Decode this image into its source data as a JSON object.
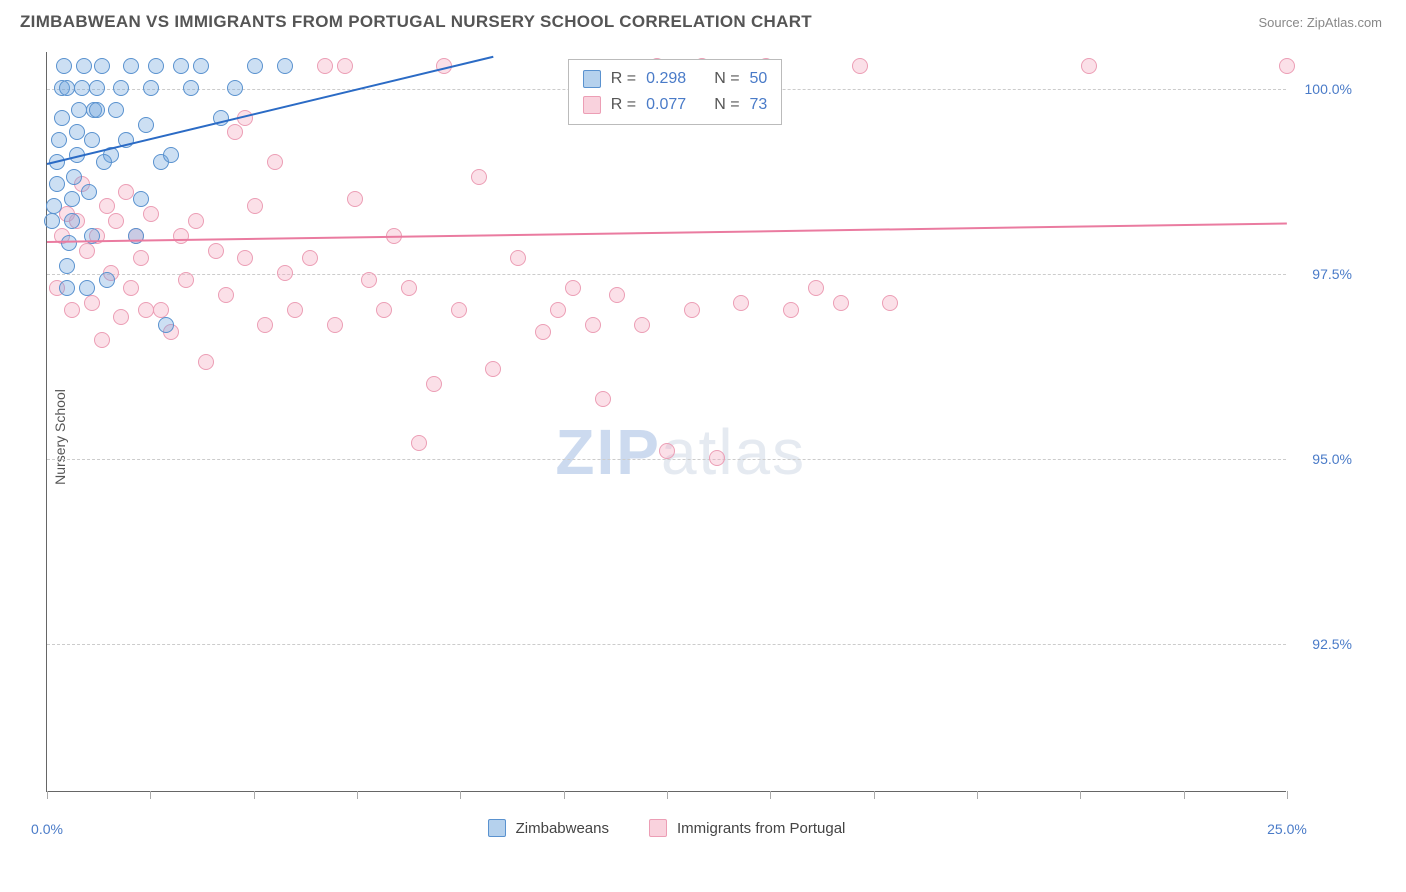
{
  "header": {
    "title": "ZIMBABWEAN VS IMMIGRANTS FROM PORTUGAL NURSERY SCHOOL CORRELATION CHART",
    "source": "Source: ZipAtlas.com"
  },
  "chart": {
    "type": "scatter",
    "ylabel": "Nursery School",
    "xlim": [
      0,
      25
    ],
    "ylim": [
      90.5,
      100.5
    ],
    "xtick_labels": [
      {
        "x": 0,
        "label": "0.0%"
      },
      {
        "x": 25,
        "label": "25.0%"
      }
    ],
    "xtick_positions": [
      0,
      2.08,
      4.17,
      6.25,
      8.33,
      10.42,
      12.5,
      14.58,
      16.67,
      18.75,
      20.83,
      22.92,
      25
    ],
    "ytick_labels": [
      {
        "y": 92.5,
        "label": "92.5%"
      },
      {
        "y": 95.0,
        "label": "95.0%"
      },
      {
        "y": 97.5,
        "label": "97.5%"
      },
      {
        "y": 100.0,
        "label": "100.0%"
      }
    ],
    "watermark": "ZIPatlas",
    "background_color": "#ffffff",
    "grid_color": "#cccccc",
    "series": {
      "blue": {
        "name": "Zimbabweans",
        "color_fill": "#6ca3dc",
        "color_border": "#5a92cf",
        "trend_color": "#2b6bc5",
        "trend": {
          "x1": 0,
          "y1": 99.0,
          "x2": 9.0,
          "y2": 100.45
        },
        "R": "0.298",
        "N": "50",
        "points": [
          [
            0.1,
            98.2
          ],
          [
            0.15,
            98.4
          ],
          [
            0.2,
            98.7
          ],
          [
            0.2,
            99.0
          ],
          [
            0.25,
            99.3
          ],
          [
            0.3,
            99.6
          ],
          [
            0.3,
            100.0
          ],
          [
            0.35,
            100.3
          ],
          [
            0.4,
            97.3
          ],
          [
            0.4,
            97.6
          ],
          [
            0.45,
            97.9
          ],
          [
            0.5,
            98.2
          ],
          [
            0.5,
            98.5
          ],
          [
            0.55,
            98.8
          ],
          [
            0.6,
            99.1
          ],
          [
            0.6,
            99.4
          ],
          [
            0.65,
            99.7
          ],
          [
            0.7,
            100.0
          ],
          [
            0.75,
            100.3
          ],
          [
            0.8,
            97.3
          ],
          [
            0.85,
            98.6
          ],
          [
            0.9,
            99.3
          ],
          [
            0.95,
            99.7
          ],
          [
            1.0,
            100.0
          ],
          [
            1.1,
            100.3
          ],
          [
            1.2,
            97.4
          ],
          [
            1.3,
            99.1
          ],
          [
            1.4,
            99.7
          ],
          [
            1.5,
            100.0
          ],
          [
            1.6,
            99.3
          ],
          [
            1.7,
            100.3
          ],
          [
            1.8,
            98.0
          ],
          [
            1.9,
            98.5
          ],
          [
            2.0,
            99.5
          ],
          [
            2.1,
            100.0
          ],
          [
            2.2,
            100.3
          ],
          [
            2.3,
            99.0
          ],
          [
            2.4,
            96.8
          ],
          [
            2.5,
            99.1
          ],
          [
            2.7,
            100.3
          ],
          [
            2.9,
            100.0
          ],
          [
            3.1,
            100.3
          ],
          [
            3.5,
            99.6
          ],
          [
            3.8,
            100.0
          ],
          [
            4.2,
            100.3
          ],
          [
            4.8,
            100.3
          ],
          [
            1.0,
            99.7
          ],
          [
            1.15,
            99.0
          ],
          [
            0.9,
            98.0
          ],
          [
            0.4,
            100.0
          ]
        ]
      },
      "pink": {
        "name": "Immigrants from Portugal",
        "color_fill": "#f4a6bc",
        "color_border": "#ec9eb5",
        "trend_color": "#ea7ba0",
        "trend": {
          "x1": 0,
          "y1": 97.95,
          "x2": 25,
          "y2": 98.2
        },
        "R": "0.077",
        "N": "73",
        "points": [
          [
            0.2,
            97.3
          ],
          [
            0.3,
            98.0
          ],
          [
            0.4,
            98.3
          ],
          [
            0.5,
            97.0
          ],
          [
            0.6,
            98.2
          ],
          [
            0.7,
            98.7
          ],
          [
            0.8,
            97.8
          ],
          [
            0.9,
            97.1
          ],
          [
            1.0,
            98.0
          ],
          [
            1.1,
            96.6
          ],
          [
            1.2,
            98.4
          ],
          [
            1.3,
            97.5
          ],
          [
            1.4,
            98.2
          ],
          [
            1.5,
            96.9
          ],
          [
            1.6,
            98.6
          ],
          [
            1.7,
            97.3
          ],
          [
            1.8,
            98.0
          ],
          [
            1.9,
            97.7
          ],
          [
            2.0,
            97.0
          ],
          [
            2.1,
            98.3
          ],
          [
            2.3,
            97.0
          ],
          [
            2.5,
            96.7
          ],
          [
            2.7,
            98.0
          ],
          [
            2.8,
            97.4
          ],
          [
            3.0,
            98.2
          ],
          [
            3.2,
            96.3
          ],
          [
            3.4,
            97.8
          ],
          [
            3.6,
            97.2
          ],
          [
            3.8,
            99.4
          ],
          [
            4.0,
            97.7
          ],
          [
            4.2,
            98.4
          ],
          [
            4.4,
            96.8
          ],
          [
            4.6,
            99.0
          ],
          [
            4.8,
            97.5
          ],
          [
            5.0,
            97.0
          ],
          [
            5.3,
            97.7
          ],
          [
            5.6,
            100.3
          ],
          [
            5.8,
            96.8
          ],
          [
            6.0,
            100.3
          ],
          [
            6.2,
            98.5
          ],
          [
            6.5,
            97.4
          ],
          [
            6.8,
            97.0
          ],
          [
            7.0,
            98.0
          ],
          [
            7.3,
            97.3
          ],
          [
            7.5,
            95.2
          ],
          [
            7.8,
            96.0
          ],
          [
            8.0,
            100.3
          ],
          [
            8.3,
            97.0
          ],
          [
            8.7,
            98.8
          ],
          [
            9.0,
            96.2
          ],
          [
            9.5,
            97.7
          ],
          [
            10.0,
            96.7
          ],
          [
            10.3,
            97.0
          ],
          [
            10.6,
            97.3
          ],
          [
            11.0,
            96.8
          ],
          [
            11.2,
            95.8
          ],
          [
            11.5,
            97.2
          ],
          [
            12.0,
            96.8
          ],
          [
            12.3,
            100.3
          ],
          [
            12.5,
            95.1
          ],
          [
            13.0,
            97.0
          ],
          [
            13.2,
            100.3
          ],
          [
            13.5,
            95.0
          ],
          [
            14.0,
            97.1
          ],
          [
            14.5,
            100.3
          ],
          [
            15.0,
            97.0
          ],
          [
            15.5,
            97.3
          ],
          [
            16.0,
            97.1
          ],
          [
            16.4,
            100.3
          ],
          [
            17.0,
            97.1
          ],
          [
            21.0,
            100.3
          ],
          [
            25.0,
            100.3
          ],
          [
            4.0,
            99.6
          ]
        ]
      }
    },
    "legend": {
      "items": [
        {
          "key": "blue",
          "label": "Zimbabweans"
        },
        {
          "key": "pink",
          "label": "Immigrants from Portugal"
        }
      ]
    },
    "stats_box": {
      "left_pct": 42,
      "top_y": 100.4
    }
  }
}
